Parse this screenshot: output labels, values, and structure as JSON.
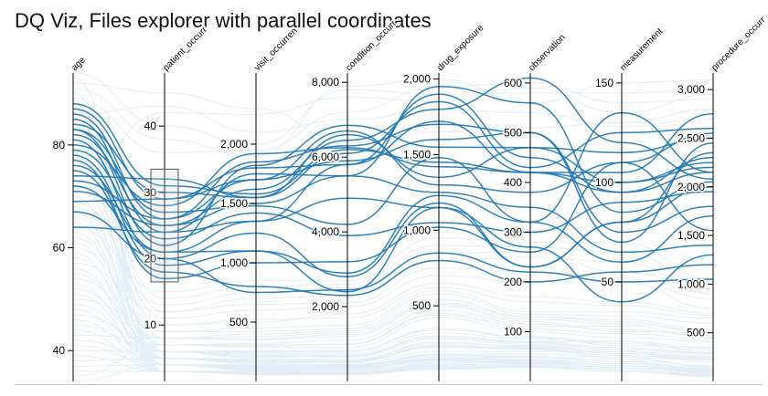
{
  "page": {
    "title": "DQ Viz, Files explorer with parallel coordinates"
  },
  "colors": {
    "foreground_line": "#1f77b4",
    "background_line": "#e4edf4",
    "axis": "#000000",
    "brush": "#555555"
  },
  "chart_data": {
    "type": "parallel-coordinates",
    "title": "",
    "curve": "smooth",
    "brush": {
      "axis": "patient_occurrence",
      "range": [
        16.5,
        33.5
      ]
    },
    "axes": [
      {
        "key": "age",
        "label": "age",
        "domain": [
          34,
          94
        ],
        "ticks": [
          40,
          60,
          80
        ]
      },
      {
        "key": "patient_occurrence",
        "label": "patient_occurr",
        "domain": [
          1.5,
          48
        ],
        "ticks": [
          10,
          20,
          30,
          40
        ]
      },
      {
        "key": "visit_occurrence",
        "label": "visit_occurren",
        "domain": [
          0,
          2600
        ],
        "ticks": [
          500,
          1000,
          1500,
          2000
        ]
      },
      {
        "key": "condition_occurrence",
        "label": "condition_occurr",
        "domain": [
          0,
          8250
        ],
        "ticks": [
          2000,
          4000,
          6000,
          8000
        ]
      },
      {
        "key": "drug_exposure",
        "label": "drug_exposure",
        "domain": [
          0,
          2040
        ],
        "ticks": [
          500,
          1000,
          1500,
          2000
        ]
      },
      {
        "key": "observation",
        "label": "observation",
        "domain": [
          0,
          620
        ],
        "ticks": [
          100,
          200,
          300,
          400,
          500,
          600
        ]
      },
      {
        "key": "measurement",
        "label": "measurement",
        "domain": [
          0,
          155
        ],
        "ticks": [
          50,
          100,
          150
        ]
      },
      {
        "key": "procedure_occurrence",
        "label": "procedure_occurr",
        "domain": [
          0,
          3170
        ],
        "ticks": [
          500,
          1000,
          1500,
          2000,
          2500,
          3000
        ]
      }
    ],
    "selected_records": [
      [
        88,
        31,
        1580,
        6200,
        1450,
        420,
        95,
        2300
      ],
      [
        87,
        29,
        1700,
        6700,
        1300,
        380,
        110,
        2550
      ],
      [
        86,
        26,
        1850,
        6300,
        1700,
        500,
        70,
        2450
      ],
      [
        85,
        24,
        1750,
        5500,
        1950,
        560,
        85,
        2050
      ],
      [
        84,
        30,
        1550,
        6100,
        1850,
        430,
        125,
        2600
      ],
      [
        83,
        27,
        1480,
        4200,
        1480,
        320,
        135,
        2150
      ],
      [
        83,
        22,
        1820,
        6850,
        1550,
        470,
        100,
        2250
      ],
      [
        82,
        25,
        1620,
        6450,
        1800,
        610,
        120,
        2080
      ],
      [
        81,
        20,
        1250,
        2800,
        1180,
        230,
        80,
        2350
      ],
      [
        80,
        28,
        1920,
        6250,
        1420,
        420,
        105,
        2750
      ],
      [
        79,
        23,
        1420,
        3900,
        1050,
        300,
        90,
        1950
      ],
      [
        78,
        19,
        1100,
        2900,
        1230,
        320,
        60,
        1700
      ],
      [
        77,
        17,
        1000,
        3200,
        1020,
        260,
        110,
        1550
      ],
      [
        76,
        21,
        1350,
        5800,
        1720,
        420,
        100,
        2200
      ],
      [
        75,
        18,
        800,
        2300,
        800,
        200,
        55,
        1200
      ],
      [
        74,
        32,
        1550,
        6600,
        1350,
        470,
        115,
        2500
      ],
      [
        73,
        26,
        1700,
        5900,
        1600,
        500,
        75,
        1800
      ],
      [
        72,
        21,
        1100,
        2400,
        1150,
        270,
        40,
        1300
      ],
      [
        71,
        25,
        1500,
        5500,
        1250,
        350,
        65,
        1400
      ],
      [
        69,
        29,
        1800,
        5800,
        1900,
        450,
        95,
        2150
      ],
      [
        67,
        20,
        750,
        2450,
        850,
        220,
        50,
        1050
      ],
      [
        64,
        24,
        1350,
        4900,
        1150,
        230,
        80,
        2000
      ]
    ],
    "background_records": [
      [
        94,
        40,
        2000,
        7800,
        1900,
        580,
        145,
        3000
      ],
      [
        93,
        3,
        60,
        200,
        120,
        40,
        8,
        80
      ],
      [
        92,
        45,
        2300,
        6400,
        1650,
        510,
        130,
        2800
      ],
      [
        91,
        38,
        1900,
        7900,
        2000,
        560,
        150,
        3100
      ],
      [
        90,
        6,
        200,
        700,
        300,
        80,
        20,
        300
      ],
      [
        89,
        36,
        1950,
        7200,
        1950,
        600,
        140,
        2900
      ],
      [
        88,
        4,
        100,
        300,
        150,
        50,
        10,
        100
      ],
      [
        87,
        9,
        450,
        1500,
        600,
        140,
        35,
        650
      ],
      [
        86,
        43,
        2100,
        7000,
        1800,
        540,
        128,
        2700
      ],
      [
        85,
        5,
        150,
        450,
        200,
        60,
        15,
        200
      ],
      [
        84,
        12,
        700,
        2300,
        800,
        250,
        60,
        900
      ],
      [
        83,
        8,
        350,
        1200,
        500,
        120,
        25,
        500
      ],
      [
        82,
        3,
        80,
        250,
        90,
        30,
        5,
        60
      ],
      [
        80,
        14,
        800,
        2600,
        900,
        270,
        65,
        1000
      ],
      [
        79,
        6,
        250,
        800,
        350,
        90,
        18,
        350
      ],
      [
        78,
        11,
        600,
        2000,
        700,
        200,
        50,
        750
      ],
      [
        77,
        4,
        120,
        400,
        180,
        55,
        12,
        150
      ],
      [
        75,
        7,
        300,
        1000,
        450,
        110,
        28,
        450
      ],
      [
        74,
        42,
        2250,
        7600,
        1850,
        590,
        135,
        2950
      ],
      [
        73,
        5,
        180,
        550,
        260,
        70,
        14,
        250
      ],
      [
        72,
        10,
        500,
        1800,
        650,
        170,
        40,
        700
      ],
      [
        70,
        3,
        90,
        300,
        110,
        35,
        7,
        90
      ],
      [
        69,
        13,
        750,
        2500,
        850,
        260,
        55,
        950
      ],
      [
        68,
        6,
        220,
        650,
        280,
        75,
        16,
        280
      ],
      [
        67,
        4,
        140,
        420,
        160,
        45,
        9,
        120
      ],
      [
        66,
        8,
        380,
        1300,
        520,
        130,
        30,
        520
      ],
      [
        65,
        3,
        70,
        220,
        100,
        32,
        6,
        70
      ],
      [
        64,
        15,
        850,
        2700,
        950,
        280,
        70,
        1050
      ],
      [
        63,
        5,
        160,
        500,
        230,
        65,
        13,
        220
      ],
      [
        62,
        7,
        320,
        1100,
        470,
        115,
        26,
        470
      ],
      [
        61,
        4,
        110,
        380,
        140,
        42,
        8,
        110
      ],
      [
        60,
        9,
        420,
        1400,
        580,
        135,
        33,
        600
      ],
      [
        59,
        3,
        60,
        180,
        80,
        28,
        5,
        50
      ],
      [
        58,
        6,
        240,
        750,
        320,
        85,
        19,
        320
      ],
      [
        57,
        12,
        650,
        2100,
        750,
        220,
        52,
        850
      ],
      [
        56,
        4,
        130,
        410,
        170,
        48,
        10,
        140
      ],
      [
        55,
        5,
        170,
        520,
        240,
        68,
        14,
        230
      ],
      [
        54,
        8,
        360,
        1250,
        510,
        125,
        29,
        510
      ],
      [
        53,
        3,
        75,
        240,
        95,
        33,
        6,
        75
      ],
      [
        52,
        6,
        260,
        820,
        340,
        88,
        20,
        340
      ],
      [
        51,
        4,
        125,
        390,
        150,
        44,
        9,
        130
      ],
      [
        50,
        10,
        520,
        1700,
        620,
        160,
        38,
        680
      ],
      [
        49,
        5,
        190,
        580,
        250,
        72,
        15,
        260
      ],
      [
        48,
        3,
        85,
        260,
        105,
        36,
        7,
        85
      ],
      [
        47,
        7,
        310,
        980,
        440,
        105,
        24,
        440
      ],
      [
        46,
        4,
        135,
        430,
        175,
        50,
        11,
        160
      ],
      [
        45,
        6,
        230,
        700,
        300,
        80,
        17,
        300
      ],
      [
        44,
        3,
        65,
        210,
        88,
        30,
        5,
        65
      ],
      [
        43,
        8,
        400,
        1350,
        540,
        130,
        31,
        540
      ],
      [
        42,
        5,
        175,
        540,
        235,
        66,
        13,
        240
      ],
      [
        41,
        4,
        115,
        370,
        145,
        40,
        8,
        115
      ],
      [
        40,
        6,
        210,
        680,
        290,
        78,
        16,
        290
      ],
      [
        39,
        3,
        70,
        230,
        92,
        31,
        6,
        72
      ],
      [
        38,
        5,
        165,
        510,
        225,
        64,
        12,
        225
      ],
      [
        37,
        4,
        105,
        350,
        135,
        38,
        7,
        105
      ],
      [
        36,
        3,
        60,
        200,
        85,
        29,
        5,
        60
      ],
      [
        35,
        7,
        290,
        900,
        420,
        100,
        22,
        410
      ],
      [
        34,
        4,
        95,
        320,
        125,
        37,
        7,
        95
      ]
    ]
  }
}
